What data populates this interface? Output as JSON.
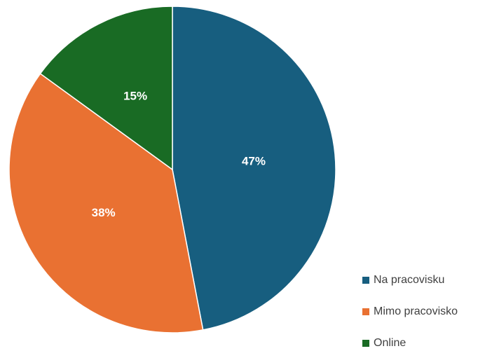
{
  "chart_data": {
    "type": "pie",
    "categories": [
      "Na pracovisku",
      "Mimo pracovisko",
      "Online"
    ],
    "values": [
      47,
      38,
      15
    ],
    "value_labels": [
      "47%",
      "38%",
      "15%"
    ],
    "colors": [
      "#175e7f",
      "#e97132",
      "#196b24"
    ],
    "legend": "bottom-right"
  }
}
